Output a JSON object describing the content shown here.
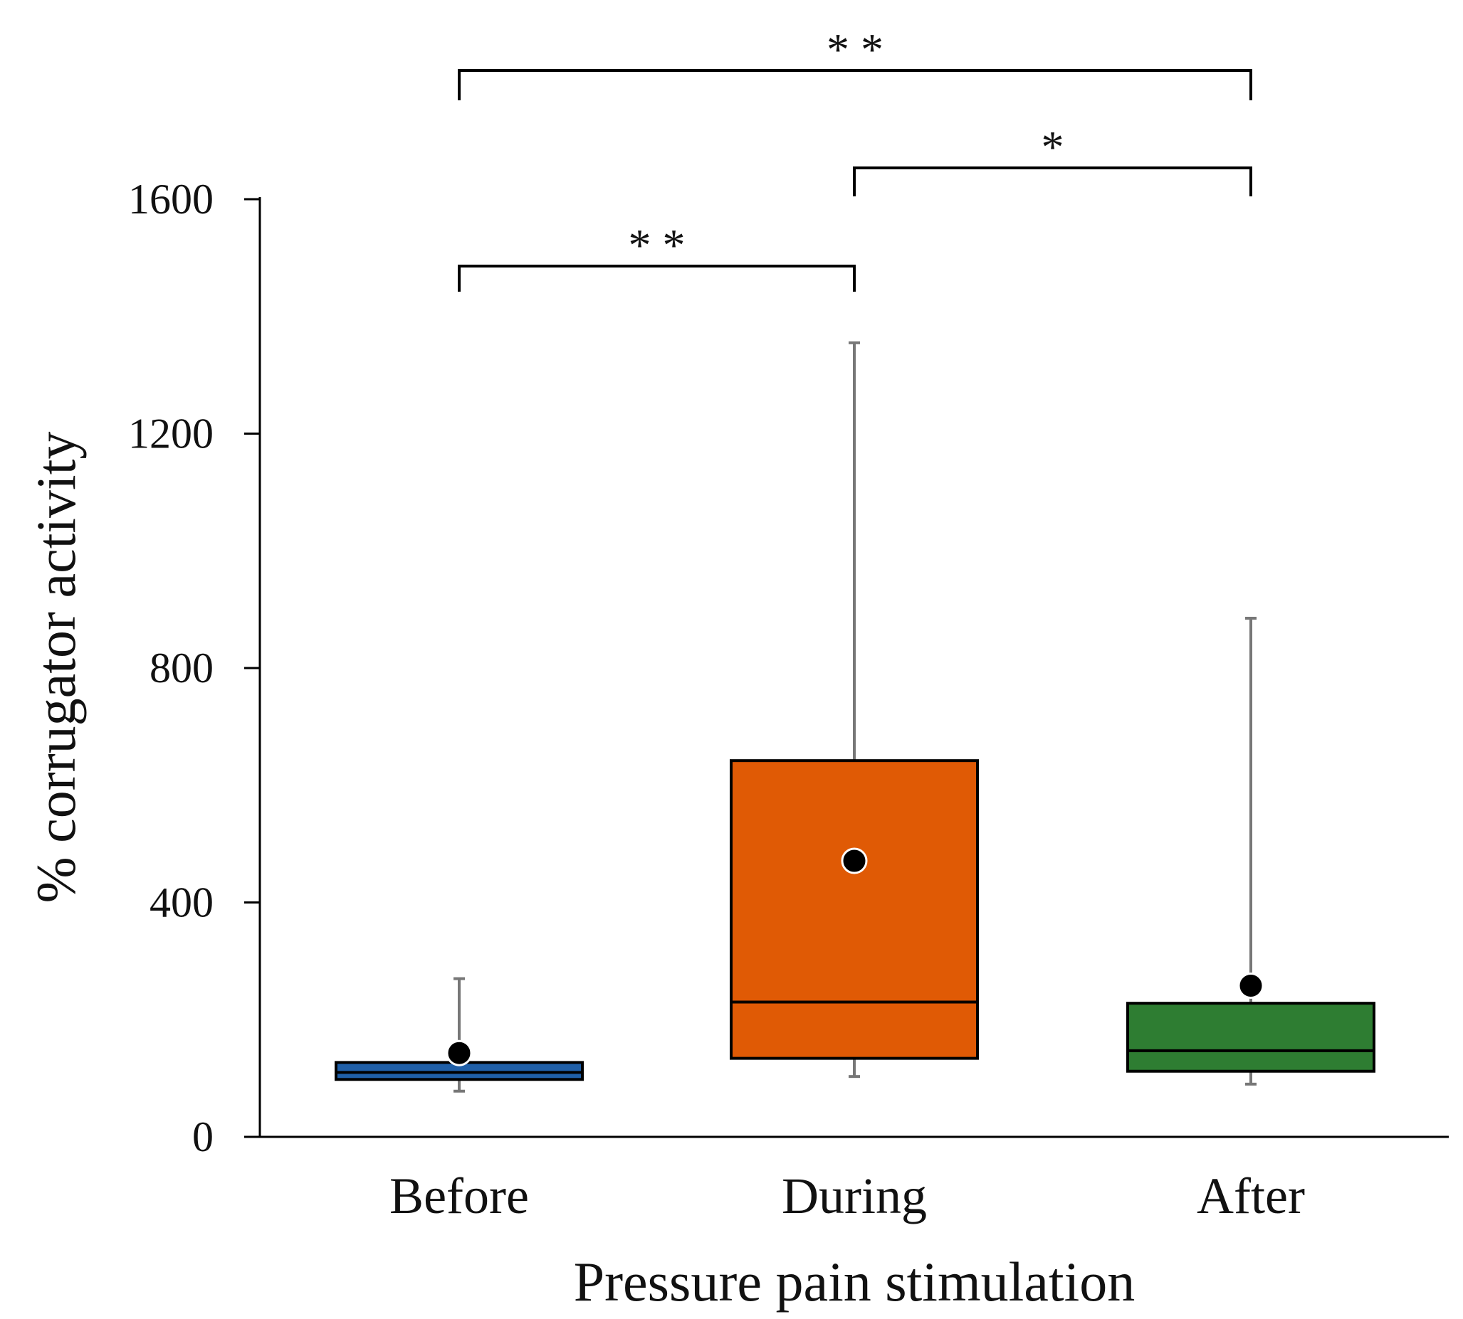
{
  "chart_data": {
    "type": "box",
    "xlabel": "Pressure pain stimulation",
    "ylabel": "% corrugator activity",
    "ylim": [
      0,
      1600
    ],
    "yticks": [
      0,
      400,
      800,
      1200,
      1600
    ],
    "grid": false,
    "categories": [
      "Before",
      "During",
      "After"
    ],
    "boxes": [
      {
        "category": "Before",
        "whisker_low": 78,
        "q1": 98,
        "median": 110,
        "q3": 127,
        "whisker_high": 270,
        "mean": 143,
        "color": "#1f5fa8"
      },
      {
        "category": "During",
        "whisker_low": 103,
        "q1": 134,
        "median": 230,
        "q3": 642,
        "whisker_high": 1355,
        "mean": 471,
        "color": "#e05a05"
      },
      {
        "category": "After",
        "whisker_low": 90,
        "q1": 112,
        "median": 147,
        "q3": 228,
        "whisker_high": 885,
        "mean": 258,
        "color": "#2e7d32"
      }
    ],
    "significance": [
      {
        "from": "Before",
        "to": "During",
        "label": "* *"
      },
      {
        "from": "During",
        "to": "After",
        "label": "*"
      },
      {
        "from": "Before",
        "to": "After",
        "label": "* *"
      }
    ]
  }
}
